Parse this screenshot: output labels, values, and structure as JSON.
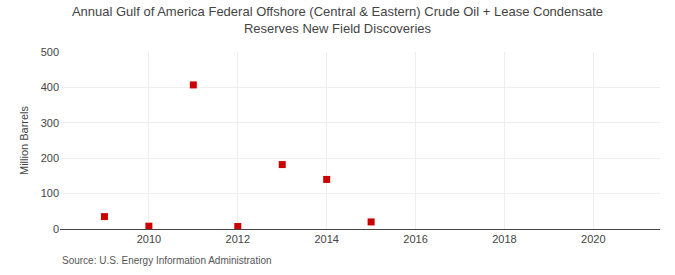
{
  "chart_data": {
    "type": "scatter",
    "title": "Annual Gulf of America Federal Offshore (Central & Eastern) Crude Oil + Lease Condensate",
    "subtitle": "Reserves New Field Discoveries",
    "ylabel": "Million Barrels",
    "annotations": [
      "Source: U.S. Energy Information Administration"
    ],
    "x": [
      2009,
      2010,
      2011,
      2012,
      2013,
      2014,
      2015
    ],
    "values": [
      35,
      8,
      407,
      7,
      182,
      140,
      20
    ],
    "color": "#cc0000",
    "marker": "square",
    "xlim": [
      2008.0,
      2021.5
    ],
    "xticks": [
      2010,
      2012,
      2014,
      2016,
      2018,
      2020
    ],
    "ylim": [
      0,
      500
    ],
    "yticks": [
      0,
      100,
      200,
      300,
      400,
      500
    ],
    "grid": true
  }
}
